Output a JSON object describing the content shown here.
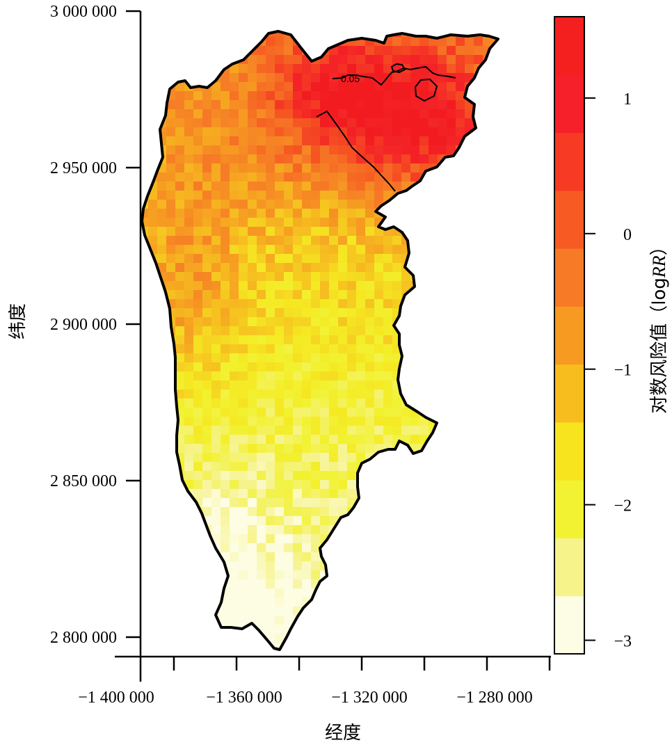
{
  "map": {
    "x_axis": {
      "title": "经度",
      "ticks": [
        "−1 400 000",
        "−1 360 000",
        "−1 320 000",
        "−1 280 000"
      ],
      "range": [
        -1400000,
        -1270000
      ]
    },
    "y_axis": {
      "title": "纬度",
      "ticks": [
        "3 000 000",
        "2 950 000",
        "2 900 000",
        "2 850 000",
        "2 800 000"
      ],
      "range": [
        2795000,
        3000000
      ]
    },
    "contour_label": "0.05",
    "colorbar": {
      "title_prefix": "对数风险值（log",
      "title_italic": "RR",
      "title_suffix": "）",
      "ticks": [
        "1",
        "0",
        "−1",
        "−2",
        "−3"
      ],
      "tick_values": [
        1,
        0,
        -1,
        -2,
        -3
      ],
      "range": [
        -3.1,
        1.6
      ],
      "bands": [
        "#fdfde6",
        "#f6f38a",
        "#f2f232",
        "#f7e41e",
        "#f7bd1e",
        "#f79a22",
        "#f77b26",
        "#f75a22",
        "#f63a24",
        "#f5202a",
        "#f41f1f"
      ]
    }
  }
}
